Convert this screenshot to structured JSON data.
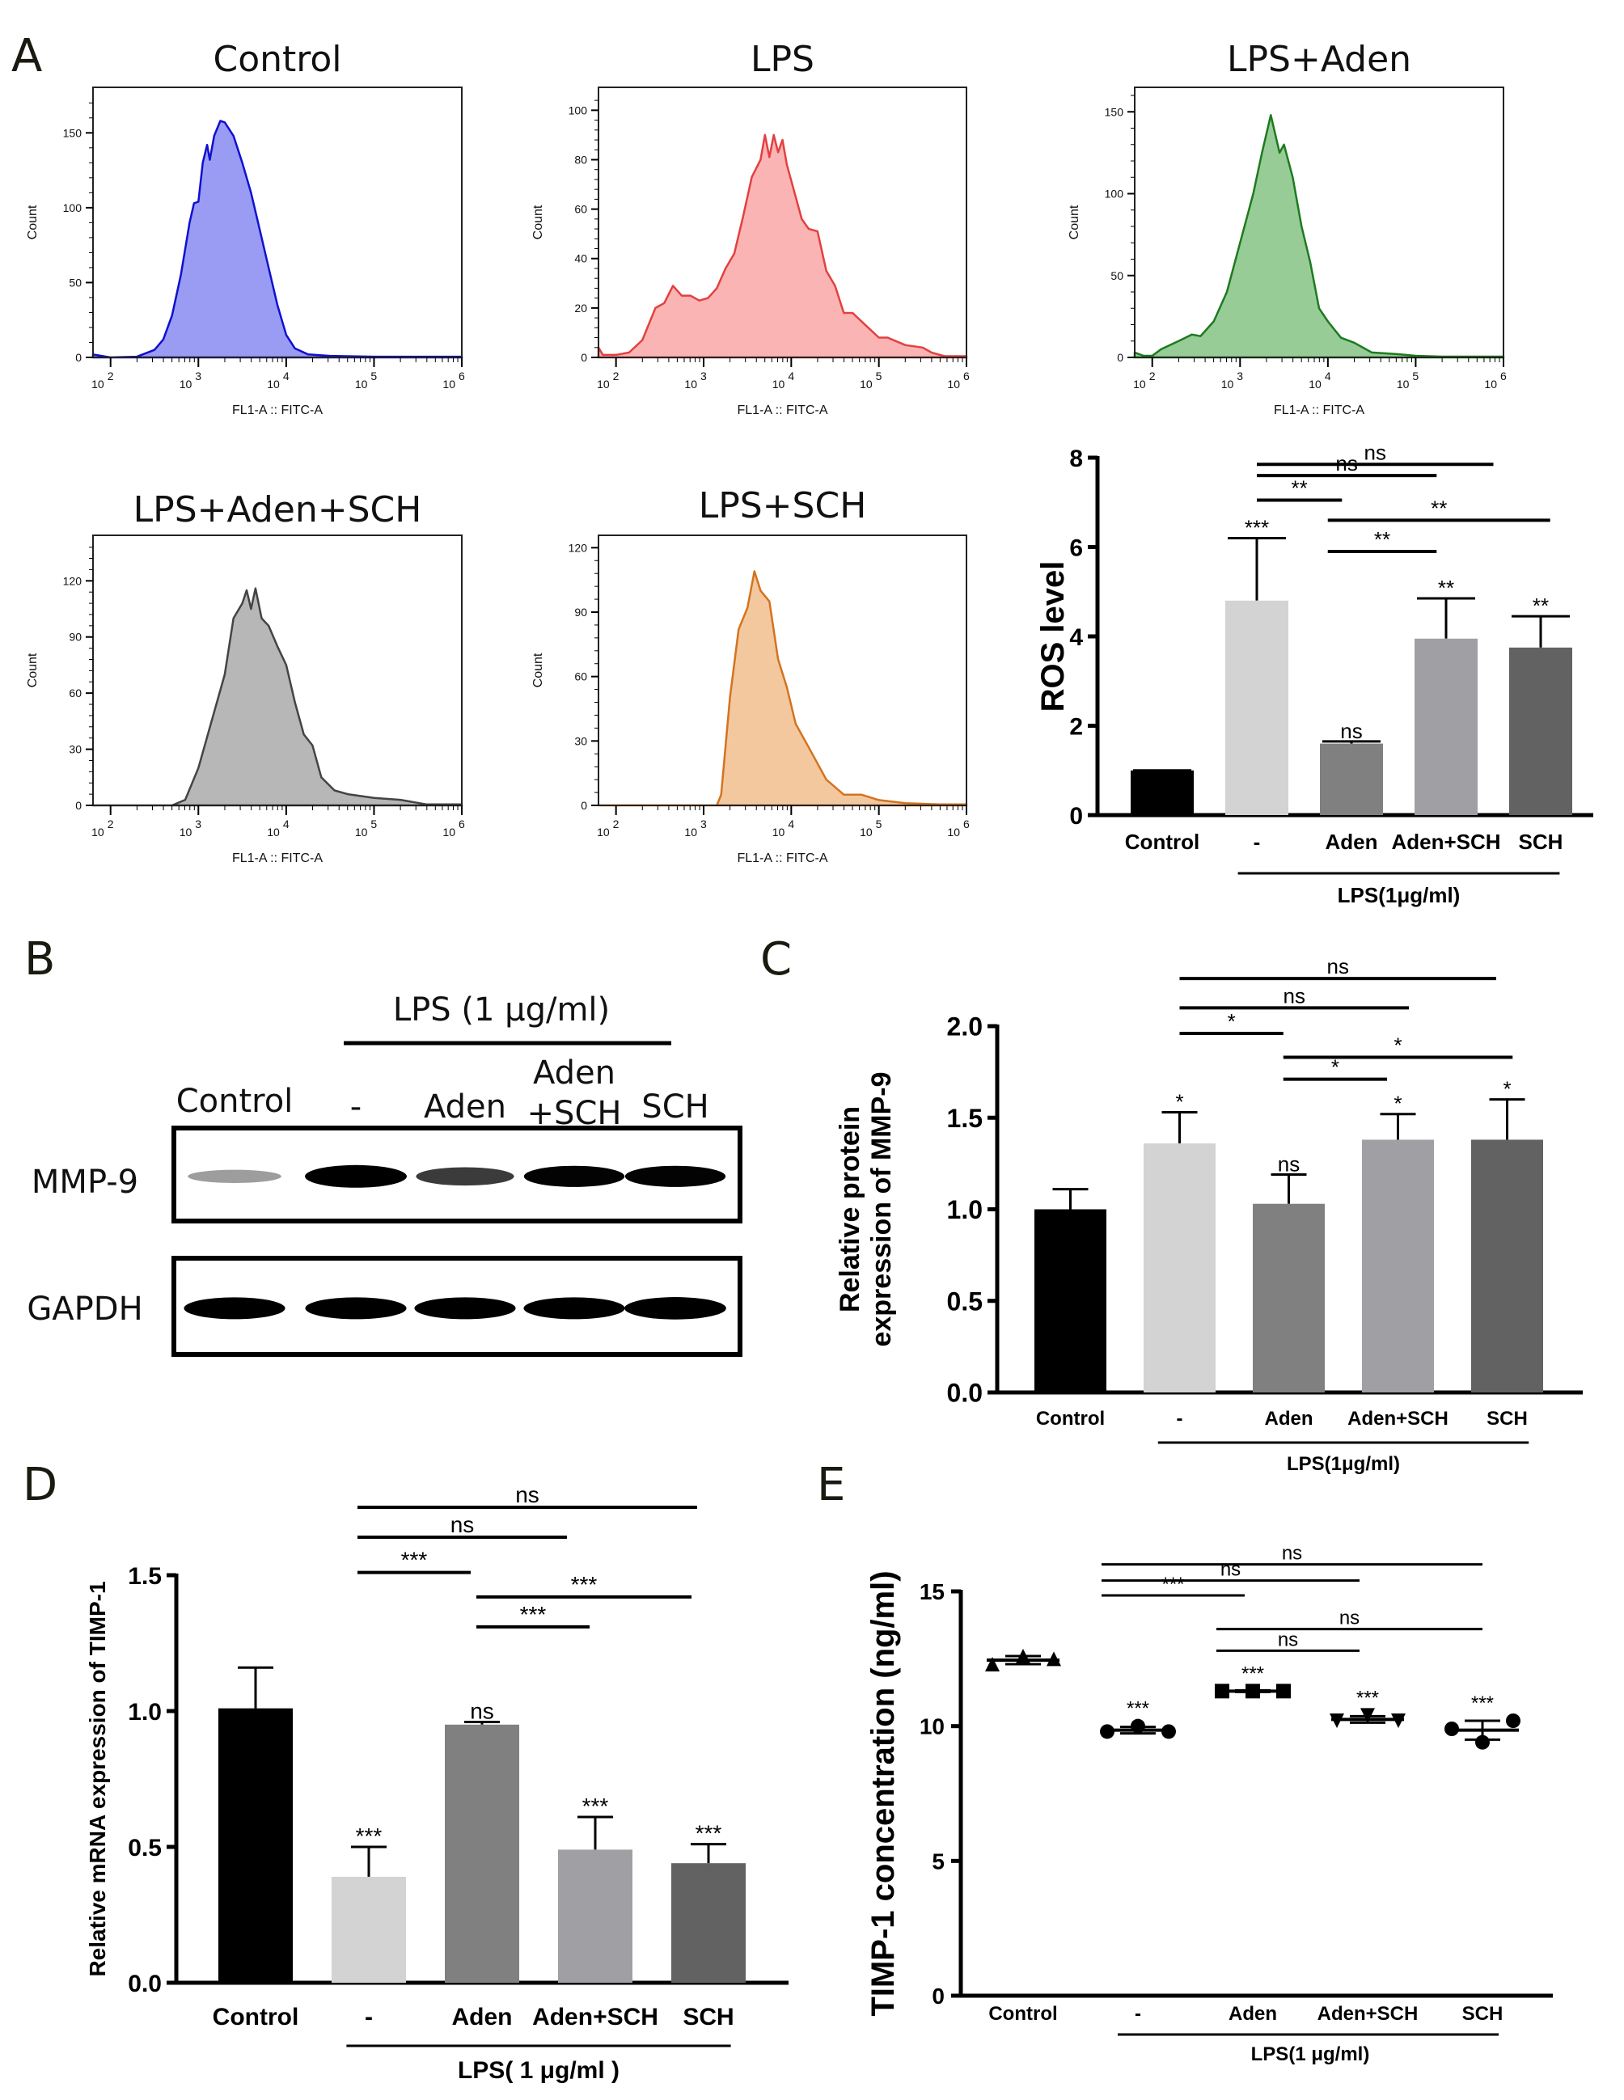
{
  "panel_labels": {
    "A": "A",
    "B": "B",
    "C": "C",
    "D": "D",
    "E": "E"
  },
  "chart_data": [
    {
      "id": "hist",
      "type": "area",
      "xlabel": "FL1-A :: FITC-A",
      "ylabel": "Count",
      "x_scale": "log",
      "xlim_log10": [
        1.8,
        6.0
      ],
      "x_ticks": [
        "10^2",
        "10^3",
        "10^4",
        "10^5",
        "10^6"
      ],
      "panels": [
        {
          "title": "Control",
          "color": "#1010d0",
          "fill": "#9a9cf4",
          "ylim": [
            0,
            175
          ],
          "yticks": [
            0,
            50,
            100,
            150
          ],
          "points": [
            [
              1.8,
              2
            ],
            [
              2.0,
              0
            ],
            [
              2.3,
              0.5
            ],
            [
              2.5,
              5
            ],
            [
              2.6,
              12
            ],
            [
              2.7,
              28
            ],
            [
              2.8,
              55
            ],
            [
              2.9,
              90
            ],
            [
              2.95,
              103
            ],
            [
              3.0,
              104
            ],
            [
              3.05,
              130
            ],
            [
              3.1,
              142
            ],
            [
              3.13,
              132
            ],
            [
              3.18,
              148
            ],
            [
              3.25,
              158
            ],
            [
              3.3,
              157
            ],
            [
              3.4,
              148
            ],
            [
              3.5,
              130
            ],
            [
              3.6,
              110
            ],
            [
              3.7,
              85
            ],
            [
              3.8,
              60
            ],
            [
              3.9,
              35
            ],
            [
              4.0,
              15
            ],
            [
              4.1,
              6
            ],
            [
              4.25,
              2
            ],
            [
              4.5,
              1
            ],
            [
              5,
              0.5
            ],
            [
              6,
              0.5
            ]
          ]
        },
        {
          "title": "LPS",
          "color": "#e34040",
          "fill": "#fbb4b4",
          "ylim": [
            0,
            106
          ],
          "yticks": [
            0,
            20,
            40,
            60,
            80,
            100
          ],
          "points": [
            [
              1.8,
              4
            ],
            [
              1.85,
              1
            ],
            [
              2.0,
              1
            ],
            [
              2.15,
              2
            ],
            [
              2.3,
              7
            ],
            [
              2.45,
              20
            ],
            [
              2.55,
              22
            ],
            [
              2.65,
              29
            ],
            [
              2.75,
              25
            ],
            [
              2.85,
              25
            ],
            [
              2.95,
              23
            ],
            [
              3.05,
              24
            ],
            [
              3.15,
              28
            ],
            [
              3.25,
              36
            ],
            [
              3.35,
              42
            ],
            [
              3.45,
              57
            ],
            [
              3.55,
              73
            ],
            [
              3.65,
              80
            ],
            [
              3.7,
              90
            ],
            [
              3.75,
              81
            ],
            [
              3.8,
              90
            ],
            [
              3.85,
              83
            ],
            [
              3.9,
              88
            ],
            [
              3.95,
              78
            ],
            [
              4.05,
              65
            ],
            [
              4.12,
              56
            ],
            [
              4.2,
              52
            ],
            [
              4.3,
              51
            ],
            [
              4.4,
              35
            ],
            [
              4.5,
              29
            ],
            [
              4.6,
              18
            ],
            [
              4.7,
              18
            ],
            [
              4.85,
              13
            ],
            [
              5.0,
              8
            ],
            [
              5.1,
              8
            ],
            [
              5.3,
              5
            ],
            [
              5.5,
              4
            ],
            [
              5.6,
              2
            ],
            [
              5.75,
              0.5
            ],
            [
              6.0,
              0.5
            ]
          ]
        },
        {
          "title": "LPS+Aden",
          "color": "#1e7a1e",
          "fill": "#97cc97",
          "ylim": [
            0,
            160
          ],
          "yticks": [
            0,
            50,
            100,
            150
          ],
          "points": [
            [
              1.8,
              3
            ],
            [
              1.9,
              1
            ],
            [
              2.0,
              1
            ],
            [
              2.1,
              5
            ],
            [
              2.3,
              10
            ],
            [
              2.45,
              14
            ],
            [
              2.55,
              13
            ],
            [
              2.7,
              22
            ],
            [
              2.85,
              40
            ],
            [
              3.0,
              70
            ],
            [
              3.15,
              100
            ],
            [
              3.25,
              125
            ],
            [
              3.35,
              148
            ],
            [
              3.45,
              125
            ],
            [
              3.5,
              130
            ],
            [
              3.6,
              110
            ],
            [
              3.7,
              80
            ],
            [
              3.8,
              58
            ],
            [
              3.9,
              30
            ],
            [
              4.0,
              22
            ],
            [
              4.15,
              12
            ],
            [
              4.3,
              9
            ],
            [
              4.5,
              3
            ],
            [
              4.8,
              2
            ],
            [
              5.0,
              1
            ],
            [
              5.3,
              0.5
            ],
            [
              6.0,
              0.5
            ]
          ]
        },
        {
          "title": "LPS+Aden+SCH",
          "color": "#444444",
          "fill": "#b7b7b7",
          "ylim": [
            0,
            140
          ],
          "yticks": [
            0,
            30,
            60,
            90,
            120
          ],
          "points": [
            [
              1.8,
              0
            ],
            [
              2.7,
              0
            ],
            [
              2.85,
              3
            ],
            [
              3.0,
              20
            ],
            [
              3.15,
              45
            ],
            [
              3.3,
              70
            ],
            [
              3.4,
              100
            ],
            [
              3.5,
              108
            ],
            [
              3.55,
              115
            ],
            [
              3.6,
              105
            ],
            [
              3.65,
              116
            ],
            [
              3.72,
              100
            ],
            [
              3.8,
              96
            ],
            [
              3.9,
              85
            ],
            [
              4.0,
              75
            ],
            [
              4.1,
              55
            ],
            [
              4.2,
              38
            ],
            [
              4.3,
              32
            ],
            [
              4.4,
              15
            ],
            [
              4.55,
              8
            ],
            [
              4.7,
              6
            ],
            [
              5.0,
              4
            ],
            [
              5.3,
              3
            ],
            [
              5.6,
              0.5
            ],
            [
              6.0,
              0.5
            ]
          ]
        },
        {
          "title": "LPS+SCH",
          "color": "#d4731e",
          "fill": "#f3c89f",
          "ylim": [
            0,
            122
          ],
          "yticks": [
            0,
            30,
            60,
            90,
            120
          ],
          "points": [
            [
              1.8,
              0
            ],
            [
              3.15,
              0
            ],
            [
              3.2,
              5
            ],
            [
              3.3,
              50
            ],
            [
              3.4,
              82
            ],
            [
              3.5,
              92
            ],
            [
              3.58,
              109
            ],
            [
              3.65,
              100
            ],
            [
              3.75,
              95
            ],
            [
              3.85,
              68
            ],
            [
              3.95,
              55
            ],
            [
              4.05,
              38
            ],
            [
              4.2,
              27
            ],
            [
              4.4,
              12
            ],
            [
              4.6,
              5
            ],
            [
              4.8,
              5
            ],
            [
              5.0,
              2.5
            ],
            [
              5.3,
              1
            ],
            [
              5.7,
              0.5
            ],
            [
              6.0,
              0.5
            ]
          ]
        }
      ]
    },
    {
      "id": "ros",
      "type": "bar",
      "ylabel": "ROS level",
      "ylim": [
        0,
        8
      ],
      "yticks": [
        0,
        2,
        4,
        6,
        8
      ],
      "categories": [
        "Control",
        "-",
        "Aden",
        "Aden+SCH",
        "SCH"
      ],
      "group_label": "LPS(1μg/ml)",
      "values": [
        1.0,
        4.8,
        1.6,
        3.95,
        3.75
      ],
      "errors_upper": [
        1.0,
        6.2,
        1.65,
        4.85,
        4.45
      ],
      "bar_colors": [
        "#000000",
        "#d3d3d3",
        "#808080",
        "#a0a0a4",
        "#626262"
      ],
      "bar_sig": [
        "",
        "***",
        "ns",
        "**",
        "**"
      ],
      "comparisons": [
        {
          "from": 1,
          "to": 3.5,
          "label": "ns",
          "y": 7.85
        },
        {
          "from": 1,
          "to": 2.9,
          "label": "ns",
          "y": 7.6
        },
        {
          "from": 1,
          "to": 1.9,
          "label": "**",
          "y": 7.05
        },
        {
          "from": 1.75,
          "to": 4.1,
          "label": "**",
          "y": 6.6
        },
        {
          "from": 1.75,
          "to": 2.9,
          "label": "**",
          "y": 5.9
        }
      ]
    },
    {
      "id": "mmp9",
      "type": "bar",
      "ylabel": "Relative protein\nexpression of MMP-9",
      "ylabel_lines": [
        "Relative protein",
        "expression of MMP-9"
      ],
      "ylim": [
        0,
        2.0
      ],
      "yticks": [
        "0.0",
        "0.5",
        "1.0",
        "1.5",
        "2.0"
      ],
      "categories": [
        "Control",
        "-",
        "Aden",
        "Aden+SCH",
        "SCH"
      ],
      "group_label": "LPS(1μg/ml)",
      "values": [
        1.0,
        1.36,
        1.03,
        1.38,
        1.38
      ],
      "errors_upper": [
        1.11,
        1.53,
        1.19,
        1.52,
        1.6
      ],
      "bar_colors": [
        "#000000",
        "#d3d3d3",
        "#808080",
        "#a0a0a4",
        "#626262"
      ],
      "bar_sig": [
        "",
        "*",
        "ns",
        "*",
        "*"
      ],
      "comparisons": [
        {
          "from": 1,
          "to": 3.9,
          "label": "ns",
          "y": 2.26
        },
        {
          "from": 1,
          "to": 3.1,
          "label": "ns",
          "y": 2.1
        },
        {
          "from": 1,
          "to": 1.95,
          "label": "*",
          "y": 1.96
        },
        {
          "from": 1.95,
          "to": 4.05,
          "label": "*",
          "y": 1.83
        },
        {
          "from": 1.95,
          "to": 2.9,
          "label": "*",
          "y": 1.71
        }
      ]
    },
    {
      "id": "timp1_mrna",
      "type": "bar",
      "ylabel": "Relative mRNA expression of  TIMP-1",
      "ylim": [
        0,
        1.5
      ],
      "yticks": [
        "0.0",
        "0.5",
        "1.0",
        "1.5"
      ],
      "categories": [
        "Control",
        "-",
        "Aden",
        "Aden+SCH",
        "SCH"
      ],
      "group_label": "LPS( 1 μg/ml )",
      "values": [
        1.01,
        0.39,
        0.95,
        0.49,
        0.44
      ],
      "errors_upper": [
        1.16,
        0.5,
        0.96,
        0.61,
        0.51
      ],
      "bar_colors": [
        "#000000",
        "#d3d3d3",
        "#808080",
        "#a0a0a4",
        "#626262"
      ],
      "bar_sig": [
        "",
        "***",
        "ns",
        "***",
        "***"
      ],
      "comparisons": [
        {
          "from": 0.9,
          "to": 3.9,
          "label": "ns",
          "y": 1.75
        },
        {
          "from": 0.9,
          "to": 2.75,
          "label": "ns",
          "y": 1.64
        },
        {
          "from": 0.9,
          "to": 1.9,
          "label": "***",
          "y": 1.51
        },
        {
          "from": 1.95,
          "to": 3.85,
          "label": "***",
          "y": 1.42
        },
        {
          "from": 1.95,
          "to": 2.95,
          "label": "***",
          "y": 1.31
        }
      ]
    },
    {
      "id": "timp1_elisa",
      "type": "scatter",
      "ylabel": "TIMP-1 concentration (ng/ml)",
      "ylim": [
        0,
        15
      ],
      "yticks": [
        0,
        5,
        10,
        15
      ],
      "categories": [
        "Control",
        "-",
        "Aden",
        "Aden+SCH",
        "SCH"
      ],
      "group_label": "LPS(1 μg/ml)",
      "markers": [
        "triangle",
        "circle",
        "square",
        "triangle-down",
        "circle"
      ],
      "points": [
        [
          12.3,
          12.6,
          12.5
        ],
        [
          9.8,
          10.0,
          9.8
        ],
        [
          11.3,
          11.3,
          11.3
        ],
        [
          10.2,
          10.4,
          10.2
        ],
        [
          9.9,
          9.4,
          10.2
        ]
      ],
      "means": [
        12.45,
        9.85,
        11.3,
        10.25,
        9.85
      ],
      "sd": [
        0.15,
        0.12,
        0.03,
        0.12,
        0.35
      ],
      "bar_sig": [
        "",
        "***",
        "***",
        "***",
        "***"
      ],
      "comparisons": [
        {
          "from": 1,
          "to": 4,
          "label": "ns",
          "y": 16.0
        },
        {
          "from": 1,
          "to": 3,
          "label": "ns",
          "y": 15.4
        },
        {
          "from": 1,
          "to": 2,
          "label": "***",
          "y": 14.85
        },
        {
          "from": 2,
          "to": 4,
          "label": "ns",
          "y": 13.6
        },
        {
          "from": 2,
          "to": 3,
          "label": "ns",
          "y": 12.8
        }
      ]
    }
  ],
  "western_blot": {
    "treatment_label": "LPS (1 μg/ml)",
    "lanes": [
      "Control",
      "-",
      "Aden",
      "Aden\n+SCH",
      "SCH"
    ],
    "lane_line1": [
      "Control",
      "-",
      "Aden",
      "Aden",
      "SCH"
    ],
    "lane_line2": [
      "",
      "",
      "",
      "+SCH",
      ""
    ],
    "bands": [
      {
        "protein": "MMP-9",
        "intensities": [
          0.35,
          1.0,
          0.7,
          0.9,
          0.9
        ]
      },
      {
        "protein": "GAPDH",
        "intensities": [
          0.95,
          0.95,
          0.95,
          0.95,
          0.98
        ]
      }
    ]
  }
}
